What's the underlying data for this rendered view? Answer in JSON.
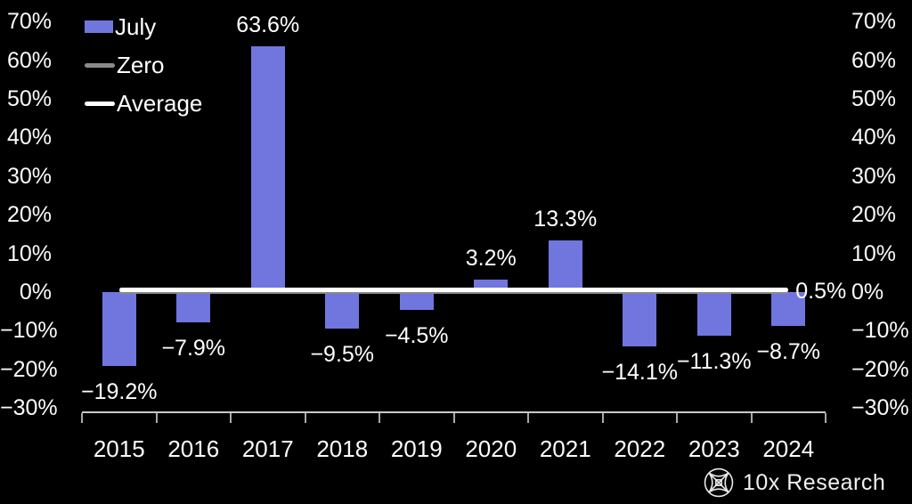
{
  "chart_data": {
    "type": "bar",
    "title": "",
    "categories": [
      "2015",
      "2016",
      "2017",
      "2018",
      "2019",
      "2020",
      "2021",
      "2022",
      "2023",
      "2024"
    ],
    "series": [
      {
        "name": "July",
        "values": [
          -19.2,
          -7.9,
          63.6,
          -9.5,
          -4.5,
          3.2,
          13.3,
          -14.1,
          -11.3,
          -8.7
        ]
      }
    ],
    "value_labels": [
      "−19.2%",
      "−7.9%",
      "63.6%",
      "−9.5%",
      "−4.5%",
      "3.2%",
      "13.3%",
      "−14.1%",
      "−11.3%",
      "−8.7%"
    ],
    "average_value": 0.5,
    "average_label": "0.5%",
    "zero_value": 0,
    "ylim": [
      -30,
      70
    ],
    "y_ticks": [
      {
        "label": "70%",
        "value": 70
      },
      {
        "label": "60%",
        "value": 60
      },
      {
        "label": "50%",
        "value": 50
      },
      {
        "label": "40%",
        "value": 40
      },
      {
        "label": "30%",
        "value": 30
      },
      {
        "label": "20%",
        "value": 20
      },
      {
        "label": "10%",
        "value": 10
      },
      {
        "label": "0%",
        "value": 0
      },
      {
        "label": "−10%",
        "value": -10
      },
      {
        "label": "−20%",
        "value": -20
      },
      {
        "label": "−30%",
        "value": -30
      }
    ],
    "legend": [
      {
        "label": "July",
        "type": "bar",
        "color": "#7176de"
      },
      {
        "label": "Zero",
        "type": "line",
        "color": "#8a8a8a"
      },
      {
        "label": "Average",
        "type": "line",
        "color": "#ffffff"
      }
    ],
    "grid": false,
    "legend_position": "top-left",
    "colors": {
      "background": "#000000",
      "bar": "#7176de",
      "zero_line": "#8a8a8a",
      "average_line": "#ffffff",
      "axis_line": "#c9c9c9",
      "tick_mark": "#a9a9a9",
      "text": "#ffffff"
    }
  },
  "footer": {
    "brand": "10x Research"
  }
}
